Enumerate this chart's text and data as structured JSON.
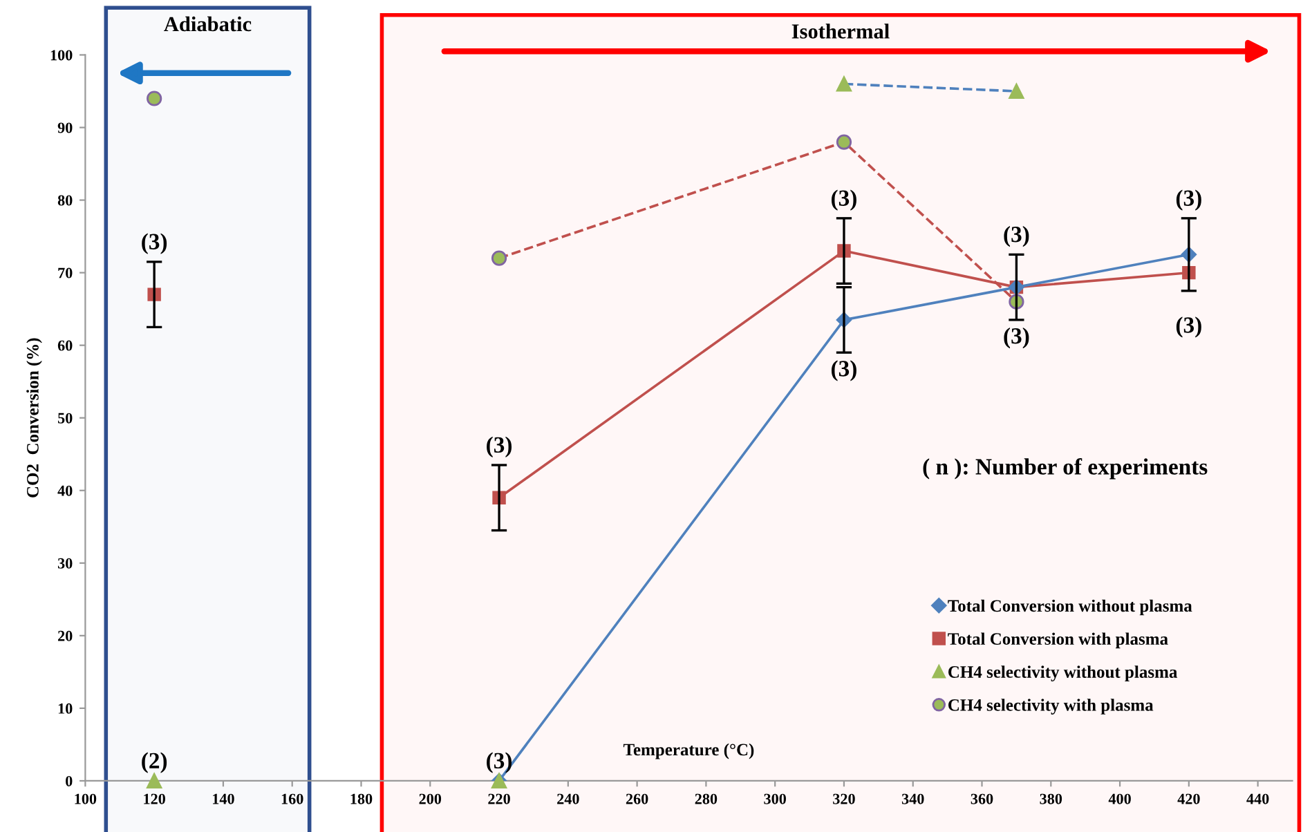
{
  "chart_data": {
    "type": "line",
    "xlabel": "Temperature (°C)",
    "ylabel": "CO2  Conversion (%)",
    "xlim": [
      100,
      450
    ],
    "xticks": [
      100,
      120,
      140,
      160,
      180,
      200,
      220,
      240,
      260,
      280,
      300,
      320,
      340,
      360,
      380,
      400,
      420,
      440
    ],
    "ylim": [
      0,
      100
    ],
    "yticks": [
      0,
      10,
      20,
      30,
      40,
      50,
      60,
      70,
      80,
      90,
      100
    ],
    "grid": false,
    "legend": "right",
    "series": [
      {
        "name": "Total Conversion without plasma",
        "color": "#4f81bd",
        "marker": "diamond",
        "line_style": "solid",
        "x": [
          220,
          320,
          370,
          420
        ],
        "values": [
          0,
          63.5,
          68,
          72.5
        ],
        "errors": [
          null,
          4.5,
          null,
          5
        ]
      },
      {
        "name": "Total Conversion with plasma",
        "color": "#c0504d",
        "marker": "square",
        "line_style": "solid",
        "x": [
          220,
          320,
          370,
          420
        ],
        "values": [
          39,
          73,
          68,
          70
        ],
        "errors": [
          4.5,
          4.5,
          4.5,
          null
        ]
      },
      {
        "type": "scatter",
        "color": "#c0504d",
        "marker": "square",
        "x": [
          120
        ],
        "values": [
          67
        ],
        "errors": [
          4.5
        ]
      },
      {
        "name": "CH4 selectivity without plasma",
        "type": "scatter",
        "color": "#9bbb59",
        "marker": "triangle",
        "x": [
          120,
          220,
          320,
          370
        ],
        "values": [
          0,
          0,
          96,
          95
        ]
      },
      {
        "type": "line",
        "color": "#4f81bd",
        "marker": "none",
        "line_style": "dashed",
        "x": [
          320,
          370
        ],
        "values": [
          96,
          95
        ]
      },
      {
        "name": "CH4 selectivity with plasma",
        "type": "scatter",
        "color": "#9bbb59",
        "marker": "circle",
        "x": [
          120,
          220,
          320,
          370
        ],
        "values": [
          94,
          72,
          88,
          66
        ]
      },
      {
        "type": "line",
        "color": "#c0504d",
        "marker": "none",
        "line_style": "dashed",
        "x": [
          220,
          320,
          370
        ],
        "values": [
          72,
          88,
          66
        ]
      }
    ],
    "bands": [
      {
        "axis": "x",
        "from": 106,
        "to": 165,
        "label": "Adiabatic",
        "color": "#2f4f8f"
      },
      {
        "axis": "x",
        "from": 186,
        "to": 452,
        "label": "Isothermal",
        "color": "#ff0000"
      }
    ],
    "annotations": [
      {
        "text": "(2)",
        "x": 120,
        "y": 0
      },
      {
        "text": "(3)",
        "x": 120,
        "y": 67
      },
      {
        "text": "(3)",
        "x": 220,
        "y": 0
      },
      {
        "text": "(3)",
        "x": 220,
        "y": 39
      },
      {
        "text": "(3)",
        "x": 320,
        "y": 73
      },
      {
        "text": "(3)",
        "x": 320,
        "y": 63.5
      },
      {
        "text": "(3)",
        "x": 370,
        "y": 68
      },
      {
        "text": "(3)",
        "x": 370,
        "y": 68
      },
      {
        "text": "(3)",
        "x": 420,
        "y": 72.5
      },
      {
        "text": "(3)",
        "x": 420,
        "y": 70
      },
      "( n ): Number of experiments"
    ]
  }
}
